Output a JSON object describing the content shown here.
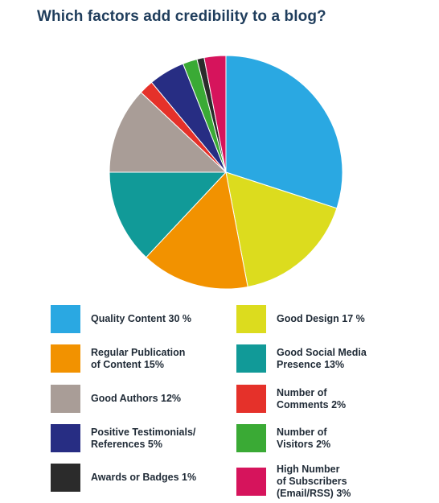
{
  "chart_data": {
    "type": "pie",
    "title": "Which factors add credibility to a blog?",
    "start_angle_deg": 0,
    "direction": "clockwise",
    "slices": [
      {
        "name": "Quality Content",
        "value": 30,
        "label": "Quality Content 30 %",
        "color": "#2aa8e2"
      },
      {
        "name": "Good Design",
        "value": 17,
        "label": "Good Design 17 %",
        "color": "#dcdc1e"
      },
      {
        "name": "Regular Publication of Content",
        "value": 15,
        "label": "Regular Publication\nof Content 15%",
        "color": "#f29200"
      },
      {
        "name": "Good Social Media Presence",
        "value": 13,
        "label": "Good Social Media\nPresence 13%",
        "color": "#119a98"
      },
      {
        "name": "Good Authors",
        "value": 12,
        "label": "Good Authors 12%",
        "color": "#a99d97"
      },
      {
        "name": "Number of Comments",
        "value": 2,
        "label": "Number of\nComments 2%",
        "color": "#e5312a"
      },
      {
        "name": "Positive Testimonials/References",
        "value": 5,
        "label": "Positive Testimonials/\nReferences 5%",
        "color": "#272d83"
      },
      {
        "name": "Number of Visitors",
        "value": 2,
        "label": "Number of\nVisitors 2%",
        "color": "#3aaa35"
      },
      {
        "name": "Awards or Badges",
        "value": 1,
        "label": "Awards or Badges 1%",
        "color": "#2b2b2b"
      },
      {
        "name": "High Number of Subscribers (Email/RSS)",
        "value": 3,
        "label": "High Number\nof Subscribers\n(Email/RSS) 3%",
        "color": "#d6145c"
      }
    ],
    "legend": [
      0,
      1,
      2,
      3,
      4,
      5,
      6,
      7,
      8,
      9
    ]
  }
}
